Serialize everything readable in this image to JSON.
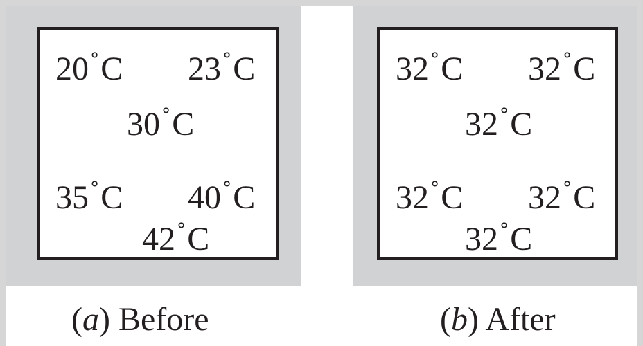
{
  "panels": {
    "before": {
      "readings": [
        "20",
        "23",
        "30",
        "35",
        "40",
        "42"
      ],
      "caption_open": "(",
      "caption_letter": "a",
      "caption_close": ")",
      "caption_text": " Before"
    },
    "after": {
      "readings": [
        "32",
        "32",
        "32",
        "32",
        "32",
        "32"
      ],
      "caption_open": "(",
      "caption_letter": "b",
      "caption_close": ")",
      "caption_text": " After"
    }
  },
  "units": {
    "degree": "°",
    "celsius": "C"
  },
  "colors": {
    "panel_gray": "#d1d2d4",
    "box_border": "#231f20"
  }
}
